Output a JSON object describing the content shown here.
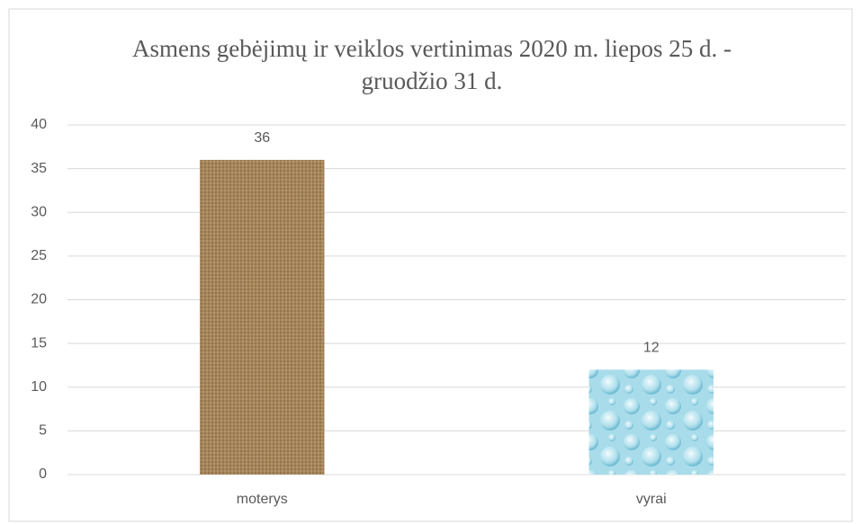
{
  "chart_data": {
    "type": "bar",
    "title": "Asmens gebėjimų ir veiklos vertinimas 2020 m. liepos 25 d. - gruodžio 31 d.",
    "categories": [
      "moterys",
      "vyrai"
    ],
    "values": [
      36,
      12
    ],
    "colors": [
      "#a5845a",
      "#a8dcea"
    ],
    "ylim": [
      0,
      40
    ],
    "yticks": [
      0,
      5,
      10,
      15,
      20,
      25,
      30,
      35,
      40
    ],
    "grid": true
  }
}
